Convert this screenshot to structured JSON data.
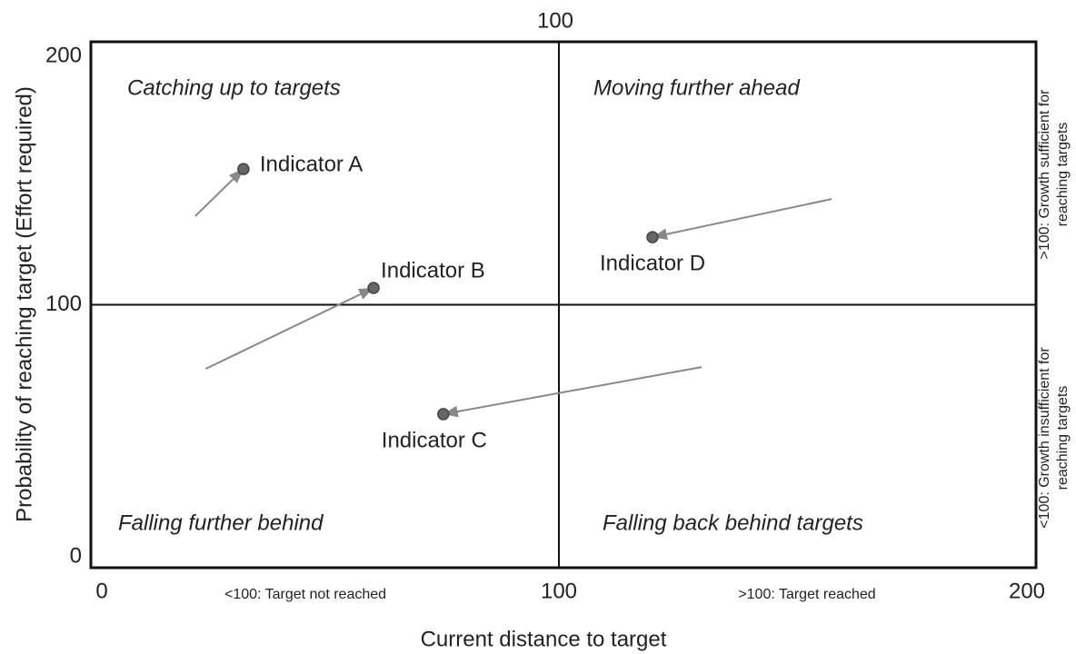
{
  "chart_data": {
    "type": "scatter",
    "xlabel": "Current distance to target",
    "ylabel": "Probability of reaching target (Effort required)",
    "xlim": [
      0,
      200
    ],
    "ylim": [
      0,
      200
    ],
    "xticks": [
      0,
      100,
      200
    ],
    "yticks": [
      0,
      100,
      200
    ],
    "vline": 100,
    "hline": 100,
    "quadrants": [
      "Catching up to targets",
      "Moving further ahead",
      "Falling further behind",
      "Falling back behind targets"
    ],
    "x_side_labels": [
      "<100: Target not reached",
      ">100: Target reached"
    ],
    "y_side_labels": [
      [
        ">100: Growth sufficient for",
        "reaching targets"
      ],
      [
        "<100: Growth insufficient for",
        "reaching targets"
      ]
    ],
    "color": "#666666",
    "points": [
      {
        "label": "Indicator A",
        "x": 32.6,
        "y": 151.6,
        "from_x": 22.3,
        "from_y": 133.7
      },
      {
        "label": "Indicator B",
        "x": 60.4,
        "y": 106.4,
        "from_x": 24.5,
        "from_y": 75.6
      },
      {
        "label": "Indicator C",
        "x": 75.3,
        "y": 58.4,
        "from_x": 130.5,
        "from_y": 76.3
      },
      {
        "label": "Indicator D",
        "x": 120,
        "y": 125.7,
        "from_x": 158.3,
        "from_y": 140.2
      }
    ]
  }
}
